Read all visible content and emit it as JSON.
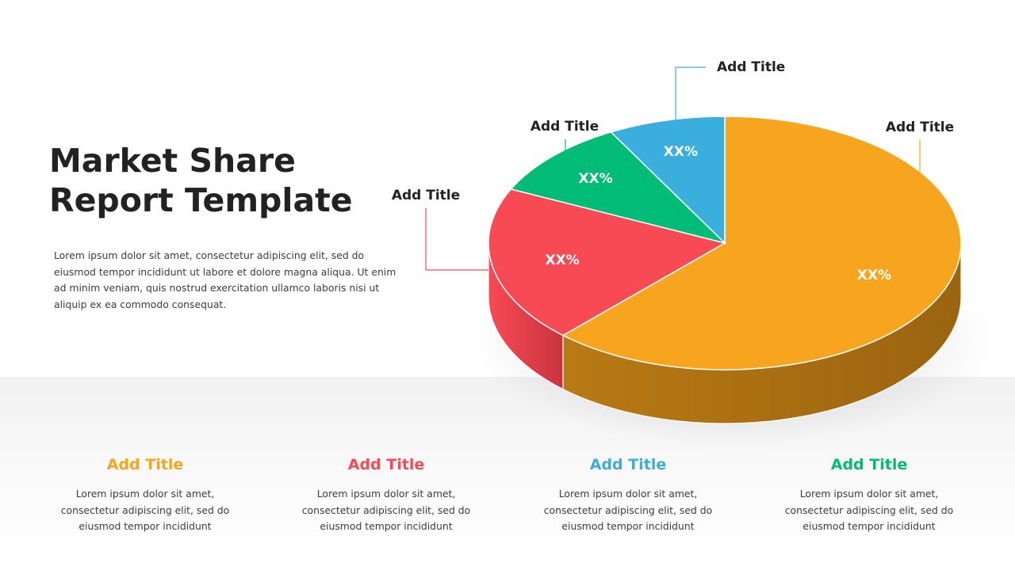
{
  "title": {
    "line1": "Market Share",
    "line2": "Report Template"
  },
  "intro": "Lorem ipsum dolor sit amet, consectetur adipiscing elit, sed do eiusmod tempor incididunt ut labore et dolore magna aliqua. Ut enim ad minim veniam, quis nostrud exercitation ullamco laboris nisi ut aliquip ex ea commodo consequat.",
  "chart_data": {
    "type": "pie",
    "title": "",
    "categories": [
      "Add Title",
      "Add Title",
      "Add Title",
      "Add Title"
    ],
    "values": [
      62,
      20,
      10,
      8
    ],
    "value_labels": [
      "XX%",
      "XX%",
      "XX%",
      "XX%"
    ],
    "colors": [
      "#F7A51E",
      "#F84A55",
      "#00BC77",
      "#3AAEDC"
    ],
    "side_colors": [
      "#9B6410",
      "#C9343E",
      "#008F5B",
      "#2A87AD"
    ],
    "style": "3d",
    "legend": "callout-labels"
  },
  "cards": [
    {
      "title": "Add Title",
      "color": "#F7A51E",
      "text": "Lorem ipsum dolor sit amet, consectetur adipiscing elit, sed do eiusmod tempor incididunt"
    },
    {
      "title": "Add Title",
      "color": "#F84A55",
      "text": "Lorem ipsum dolor sit amet, consectetur adipiscing elit, sed do eiusmod tempor incididunt"
    },
    {
      "title": "Add Title",
      "color": "#3AAEDC",
      "text": "Lorem ipsum dolor sit amet, consectetur adipiscing elit, sed do eiusmod tempor incididunt"
    },
    {
      "title": "Add Title",
      "color": "#00BC77",
      "text": "Lorem ipsum dolor sit amet, consectetur adipiscing elit, sed do eiusmod tempor incididunt"
    }
  ]
}
